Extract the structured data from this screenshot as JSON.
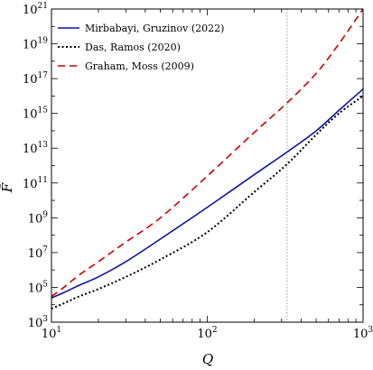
{
  "chart_data": {
    "type": "line",
    "title": "",
    "xlabel": "Q",
    "ylabel": "F̄",
    "xscale": "log",
    "yscale": "log",
    "xlim": [
      10,
      1000
    ],
    "ylim": [
      1000,
      1e+21
    ],
    "x_ticks": [
      {
        "value": 10,
        "base": "10",
        "exp": "1"
      },
      {
        "value": 100,
        "base": "10",
        "exp": "2"
      },
      {
        "value": 1000,
        "base": "10",
        "exp": "3"
      }
    ],
    "y_ticks": [
      {
        "value": 1000.0,
        "base": "10",
        "exp": "3"
      },
      {
        "value": 100000.0,
        "base": "10",
        "exp": "5"
      },
      {
        "value": 10000000.0,
        "base": "10",
        "exp": "7"
      },
      {
        "value": 1000000000.0,
        "base": "10",
        "exp": "9"
      },
      {
        "value": 100000000000.0,
        "base": "10",
        "exp": "11"
      },
      {
        "value": 10000000000000.0,
        "base": "10",
        "exp": "13"
      },
      {
        "value": 1000000000000000.0,
        "base": "10",
        "exp": "15"
      },
      {
        "value": 1e+17,
        "base": "10",
        "exp": "17"
      },
      {
        "value": 1e+19,
        "base": "10",
        "exp": "19"
      },
      {
        "value": 1e+21,
        "base": "10",
        "exp": "21"
      }
    ],
    "vline": {
      "x": 325,
      "color": "#999999",
      "style": "dotted"
    },
    "legend_position": "top-left",
    "grid": false,
    "series": [
      {
        "name": "Mirbabayi, Gruzinov (2022)",
        "color": "#0a14a0",
        "style": "solid",
        "x": [
          10,
          12,
          15,
          20,
          30,
          50,
          100,
          200,
          325,
          500,
          700,
          1000
        ],
        "y": [
          25000,
          50000,
          130000,
          400000,
          3000000,
          60000000,
          4000000000,
          300000000000,
          6000000000000,
          100000000000000,
          1500000000000000,
          25000000000000000
        ]
      },
      {
        "name": "Das, Ramos (2020)",
        "color": "#000000",
        "style": "dotted",
        "x": [
          10,
          12,
          15,
          20,
          30,
          50,
          100,
          200,
          325,
          500,
          700,
          1000
        ],
        "y": [
          6000,
          12000,
          30000,
          80000,
          400000,
          4000000,
          150000000,
          30000000000,
          1200000000000,
          60000000000000,
          1000000000000000,
          10000000000000000
        ]
      },
      {
        "name": "Graham, Moss (2009)",
        "color": "#c80000",
        "style": "dashed",
        "x": [
          10,
          12,
          15,
          20,
          30,
          50,
          100,
          200,
          325,
          500,
          700,
          1000
        ],
        "y": [
          30000,
          100000,
          500000,
          3000000,
          40000000,
          1000000000,
          250000000000,
          80000000000000,
          4000000000000000,
          200000000000000000,
          10000000000000000000,
          1e+21
        ]
      }
    ]
  }
}
